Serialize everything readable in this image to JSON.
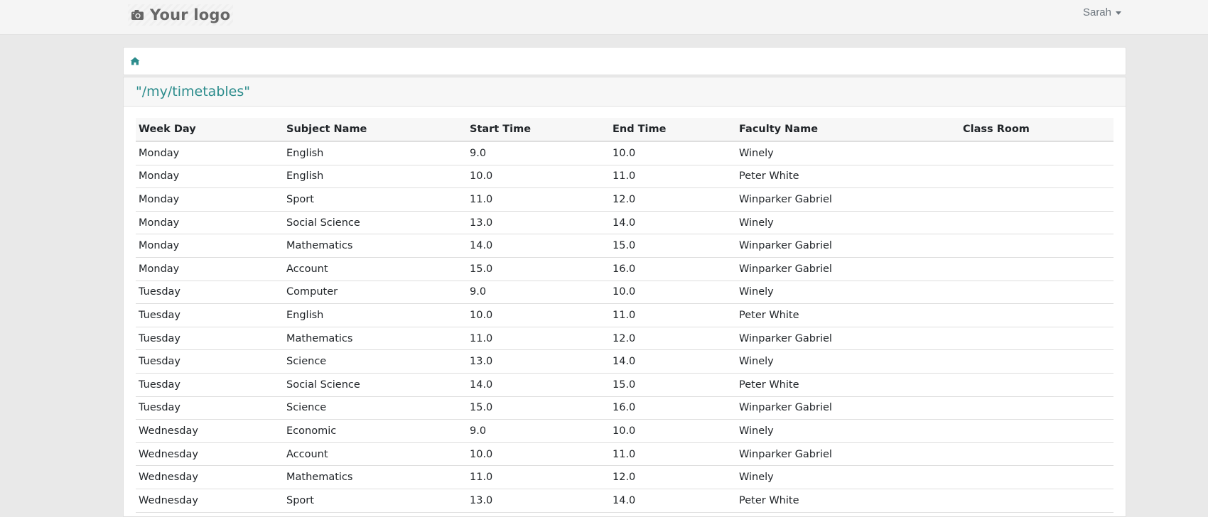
{
  "header": {
    "logo_text": "Your logo",
    "logo_icon": "camera-icon",
    "user_name": "Sarah"
  },
  "breadcrumb": {
    "home_icon": "home-icon"
  },
  "card": {
    "title": "\"/my/timetables\""
  },
  "table": {
    "columns": [
      "Week Day",
      "Subject Name",
      "Start Time",
      "End Time",
      "Faculty Name",
      "Class Room"
    ],
    "rows": [
      [
        "Monday",
        "English",
        "9.0",
        "10.0",
        "Winely",
        ""
      ],
      [
        "Monday",
        "English",
        "10.0",
        "11.0",
        "Peter White",
        ""
      ],
      [
        "Monday",
        "Sport",
        "11.0",
        "12.0",
        "Winparker Gabriel",
        ""
      ],
      [
        "Monday",
        "Social Science",
        "13.0",
        "14.0",
        "Winely",
        ""
      ],
      [
        "Monday",
        "Mathematics",
        "14.0",
        "15.0",
        "Winparker Gabriel",
        ""
      ],
      [
        "Monday",
        "Account",
        "15.0",
        "16.0",
        "Winparker Gabriel",
        ""
      ],
      [
        "Tuesday",
        "Computer",
        "9.0",
        "10.0",
        "Winely",
        ""
      ],
      [
        "Tuesday",
        "English",
        "10.0",
        "11.0",
        "Peter White",
        ""
      ],
      [
        "Tuesday",
        "Mathematics",
        "11.0",
        "12.0",
        "Winparker Gabriel",
        ""
      ],
      [
        "Tuesday",
        "Science",
        "13.0",
        "14.0",
        "Winely",
        ""
      ],
      [
        "Tuesday",
        "Social Science",
        "14.0",
        "15.0",
        "Peter White",
        ""
      ],
      [
        "Tuesday",
        "Science",
        "15.0",
        "16.0",
        "Winparker Gabriel",
        ""
      ],
      [
        "Wednesday",
        "Economic",
        "9.0",
        "10.0",
        "Winely",
        ""
      ],
      [
        "Wednesday",
        "Account",
        "10.0",
        "11.0",
        "Winparker Gabriel",
        ""
      ],
      [
        "Wednesday",
        "Mathematics",
        "11.0",
        "12.0",
        "Winely",
        ""
      ],
      [
        "Wednesday",
        "Sport",
        "13.0",
        "14.0",
        "Peter White",
        ""
      ]
    ]
  },
  "colors": {
    "accent": "#2c8c8c",
    "page_bg": "#e9e9e9",
    "topbar_bg": "#f5f5f5"
  }
}
